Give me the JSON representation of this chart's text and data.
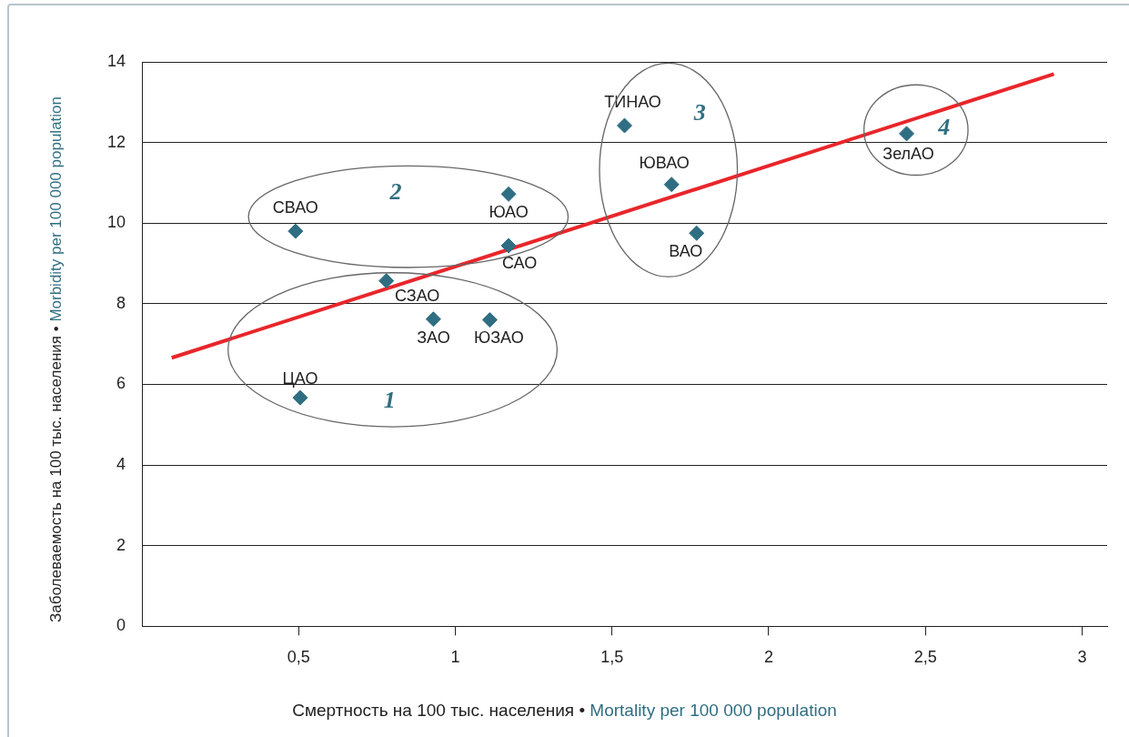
{
  "chart_data": {
    "type": "scatter",
    "xlabel": "Смертность на 100 тыс. населения • Mortality per 100 000 population",
    "ylabel": "Заболеваемость на 100 тыс. населения • Morbidity per 100 000 population",
    "xlim": [
      0,
      3.08
    ],
    "ylim": [
      0,
      14
    ],
    "xticks": [
      {
        "value": 0.5,
        "label": "0,5"
      },
      1,
      {
        "value": 1.5,
        "label": "1,5"
      },
      2,
      {
        "value": 2.5,
        "label": "2,5"
      },
      3
    ],
    "yticks": [
      0,
      2,
      4,
      6,
      8,
      10,
      12,
      14
    ],
    "grid": "y",
    "marker": "diamond",
    "series": [
      {
        "type": "scatter",
        "color": "#2f6e82",
        "x": [
          0.505,
          0.49,
          0.78,
          0.93,
          1.11,
          1.17,
          1.17,
          1.54,
          1.69,
          1.77,
          2.44
        ],
        "values": [
          5.67,
          9.8,
          8.57,
          7.62,
          7.6,
          10.72,
          9.44,
          12.42,
          10.96,
          9.75,
          12.22
        ]
      },
      {
        "type": "line",
        "color": "#e8262b",
        "marker": "none",
        "x": [
          0.095,
          2.91
        ],
        "values": [
          6.66,
          13.7
        ]
      }
    ],
    "annotations": [
      {
        "text": "ЦАО",
        "x": 0.505,
        "y": 5.67
      },
      {
        "text": "СВАО",
        "x": 0.49,
        "y": 9.8
      },
      {
        "text": "СЗАО",
        "x": 0.78,
        "y": 8.57
      },
      {
        "text": "ЗАО",
        "x": 0.93,
        "y": 7.62
      },
      {
        "text": "ЮЗАО",
        "x": 1.11,
        "y": 7.6
      },
      {
        "text": "ЮАО",
        "x": 1.17,
        "y": 10.72
      },
      {
        "text": "САО",
        "x": 1.17,
        "y": 9.44
      },
      {
        "text": "ТИНАО",
        "x": 1.54,
        "y": 12.42
      },
      {
        "text": "ЮВАО",
        "x": 1.69,
        "y": 10.96
      },
      {
        "text": "ВАО",
        "x": 1.77,
        "y": 9.75
      },
      {
        "text": "ЗелАО",
        "x": 2.44,
        "y": 12.22
      },
      "1",
      "2",
      "3",
      "4"
    ]
  }
}
